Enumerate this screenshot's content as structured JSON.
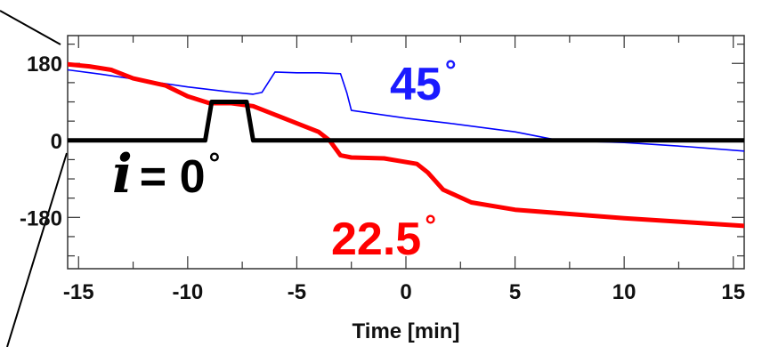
{
  "chart_data": {
    "type": "line",
    "title": "",
    "xlabel": "Time [min]",
    "ylabel": "",
    "xlim": [
      -15.5,
      15.5
    ],
    "ylim": [
      -300,
      245
    ],
    "grid": false,
    "x_ticks": [
      -15,
      -10,
      -5,
      0,
      5,
      10,
      15
    ],
    "x_tick_labels": [
      "-15",
      "-10",
      "-5",
      "0",
      "5",
      "10",
      "15"
    ],
    "y_ticks": [
      180,
      0,
      -180
    ],
    "y_tick_labels": [
      "180",
      "0",
      "-180"
    ],
    "series": [
      {
        "name": "45°",
        "color": "#0000ff",
        "x": [
          -15.5,
          -14,
          -12,
          -10,
          -8,
          -7,
          -6.6,
          -6,
          -5,
          -4,
          -3,
          -2.7,
          -2.5,
          0,
          2,
          5,
          7,
          10,
          13,
          15.5
        ],
        "y": [
          165,
          155,
          140,
          125,
          113,
          108,
          112,
          160,
          158,
          158,
          156,
          110,
          70,
          52,
          40,
          20,
          0,
          -5,
          -15,
          -25
        ]
      },
      {
        "name": "22.5°",
        "color": "#ff0000",
        "x": [
          -15.5,
          -14.5,
          -13.5,
          -12.5,
          -11,
          -10,
          -9,
          -8,
          -7,
          -6,
          -5,
          -4,
          -3.5,
          -3,
          -2.5,
          -1,
          0.5,
          1,
          1.7,
          3,
          5,
          7.5,
          10,
          12.5,
          15.5
        ],
        "y": [
          178,
          173,
          165,
          145,
          128,
          103,
          87,
          87,
          80,
          60,
          40,
          20,
          0,
          -35,
          -40,
          -42,
          -55,
          -75,
          -115,
          -145,
          -162,
          -172,
          -182,
          -190,
          -200
        ]
      },
      {
        "name": "i = 0°",
        "color": "#000000",
        "x": [
          -15.5,
          -9.2,
          -8.9,
          -7.3,
          -7.0,
          15.5
        ],
        "y": [
          0,
          0,
          90,
          90,
          0,
          0
        ]
      }
    ],
    "annotations": {
      "label_45": "45",
      "label_22": "22.5",
      "label_i": "i",
      "label_i_eq": "= 0",
      "degree_mark": "°"
    }
  }
}
